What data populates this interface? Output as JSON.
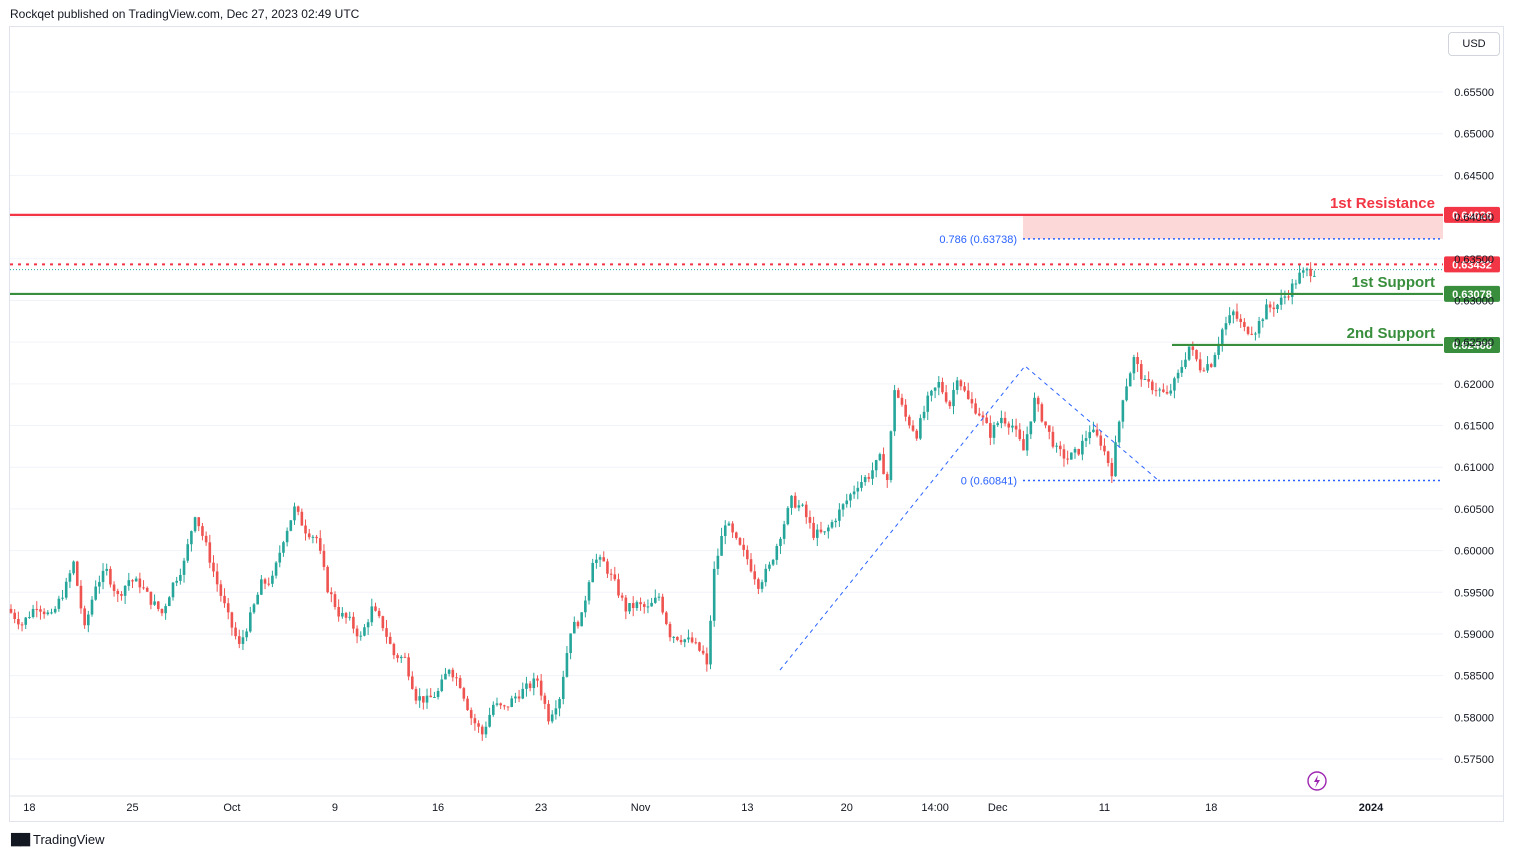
{
  "header": {
    "text": "Rockqet published on TradingView.com, Dec 27, 2023 02:49 UTC"
  },
  "toolbar": {
    "currency_label": "USD"
  },
  "footer": {
    "brand_label": "TradingView"
  },
  "colors": {
    "up": "#26a69a",
    "down": "#ef5350",
    "resistance": "#f23645",
    "support": "#388e3c",
    "fib": "#2962ff",
    "zone": "#fcd8d9"
  },
  "chart_data": {
    "type": "candlestick",
    "title": "",
    "y_axis": {
      "ticks": [
        "0.65500",
        "0.65000",
        "0.64500",
        "0.64000",
        "0.63500",
        "0.63000",
        "0.62500",
        "0.62000",
        "0.61500",
        "0.61000",
        "0.60500",
        "0.60000",
        "0.59500",
        "0.59000",
        "0.58500",
        "0.58000",
        "0.57500"
      ],
      "range": [
        0.5725,
        0.6585
      ]
    },
    "x_axis": {
      "ticks": [
        "18",
        "25",
        "Oct",
        "9",
        "16",
        "23",
        "Nov",
        "13",
        "20",
        "14:00",
        "Dec",
        "11",
        "18",
        "2024"
      ]
    },
    "levels": [
      {
        "name": "resistance",
        "label": "1st Resistance",
        "value": "0.64026",
        "style": "solid",
        "color": "#f23645"
      },
      {
        "name": "dotted-resistance",
        "label": "",
        "value": "0.63432",
        "style": "dotted",
        "color": "#f23645"
      },
      {
        "name": "support-1",
        "label": "1st Support",
        "value": "0.63078",
        "style": "solid",
        "color": "#388e3c"
      },
      {
        "name": "support-2",
        "label": "2nd Support",
        "value": "0.62466",
        "style": "solid",
        "color": "#388e3c"
      }
    ],
    "fib": [
      {
        "label": "0.786 (0.63738)",
        "value": 0.63738
      },
      {
        "label": "0 (0.60841)",
        "value": 0.60841
      }
    ],
    "price_path": [
      [
        0,
        0.593
      ],
      [
        4,
        0.5912
      ],
      [
        8,
        0.5935
      ],
      [
        12,
        0.592
      ],
      [
        16,
        0.5958
      ],
      [
        18,
        0.5985
      ],
      [
        21,
        0.5905
      ],
      [
        24,
        0.596
      ],
      [
        27,
        0.5975
      ],
      [
        30,
        0.5945
      ],
      [
        33,
        0.5965
      ],
      [
        36,
        0.596
      ],
      [
        39,
        0.594
      ],
      [
        42,
        0.5925
      ],
      [
        45,
        0.596
      ],
      [
        48,
        0.5985
      ],
      [
        51,
        0.6045
      ],
      [
        54,
        0.6005
      ],
      [
        57,
        0.596
      ],
      [
        60,
        0.592
      ],
      [
        63,
        0.5885
      ],
      [
        66,
        0.592
      ],
      [
        69,
        0.596
      ],
      [
        72,
        0.5965
      ],
      [
        75,
        0.6015
      ],
      [
        78,
        0.605
      ],
      [
        81,
        0.6025
      ],
      [
        84,
        0.6015
      ],
      [
        87,
        0.5955
      ],
      [
        90,
        0.5925
      ],
      [
        93,
        0.5915
      ],
      [
        96,
        0.5895
      ],
      [
        99,
        0.593
      ],
      [
        102,
        0.591
      ],
      [
        105,
        0.5875
      ],
      [
        108,
        0.587
      ],
      [
        111,
        0.5825
      ],
      [
        114,
        0.582
      ],
      [
        117,
        0.583
      ],
      [
        120,
        0.586
      ],
      [
        123,
        0.584
      ],
      [
        126,
        0.58
      ],
      [
        129,
        0.578
      ],
      [
        132,
        0.5815
      ],
      [
        135,
        0.581
      ],
      [
        138,
        0.5825
      ],
      [
        141,
        0.5835
      ],
      [
        144,
        0.5845
      ],
      [
        147,
        0.58
      ],
      [
        150,
        0.5825
      ],
      [
        153,
        0.5905
      ],
      [
        156,
        0.592
      ],
      [
        159,
        0.599
      ],
      [
        162,
        0.5985
      ],
      [
        165,
        0.596
      ],
      [
        168,
        0.593
      ],
      [
        171,
        0.5935
      ],
      [
        174,
        0.593
      ],
      [
        177,
        0.5945
      ],
      [
        180,
        0.59
      ],
      [
        183,
        0.5895
      ],
      [
        186,
        0.589
      ],
      [
        189,
        0.5875
      ],
      [
        190,
        0.586
      ],
      [
        192,
        0.5975
      ],
      [
        195,
        0.6035
      ],
      [
        198,
        0.601
      ],
      [
        201,
        0.599
      ],
      [
        204,
        0.596
      ],
      [
        207,
        0.598
      ],
      [
        210,
        0.602
      ],
      [
        213,
        0.606
      ],
      [
        216,
        0.605
      ],
      [
        219,
        0.602
      ],
      [
        222,
        0.602
      ],
      [
        225,
        0.604
      ],
      [
        228,
        0.606
      ],
      [
        231,
        0.608
      ],
      [
        234,
        0.609
      ],
      [
        237,
        0.611
      ],
      [
        239,
        0.6085
      ],
      [
        241,
        0.6195
      ],
      [
        244,
        0.616
      ],
      [
        247,
        0.614
      ],
      [
        250,
        0.618
      ],
      [
        253,
        0.62
      ],
      [
        256,
        0.6175
      ],
      [
        258,
        0.621
      ],
      [
        261,
        0.618
      ],
      [
        264,
        0.6165
      ],
      [
        267,
        0.614
      ],
      [
        270,
        0.616
      ],
      [
        273,
        0.615
      ],
      [
        276,
        0.612
      ],
      [
        279,
        0.618
      ],
      [
        282,
        0.615
      ],
      [
        285,
        0.612
      ],
      [
        288,
        0.611
      ],
      [
        291,
        0.612
      ],
      [
        294,
        0.6145
      ],
      [
        297,
        0.613
      ],
      [
        300,
        0.6095
      ],
      [
        303,
        0.6185
      ],
      [
        306,
        0.623
      ],
      [
        309,
        0.62
      ],
      [
        312,
        0.6195
      ],
      [
        315,
        0.6185
      ],
      [
        318,
        0.621
      ],
      [
        321,
        0.6245
      ],
      [
        324,
        0.622
      ],
      [
        327,
        0.6225
      ],
      [
        330,
        0.6265
      ],
      [
        333,
        0.6285
      ],
      [
        336,
        0.6265
      ],
      [
        339,
        0.6265
      ],
      [
        342,
        0.629
      ],
      [
        345,
        0.6295
      ],
      [
        348,
        0.631
      ],
      [
        351,
        0.633
      ],
      [
        353,
        0.6335
      ]
    ]
  }
}
